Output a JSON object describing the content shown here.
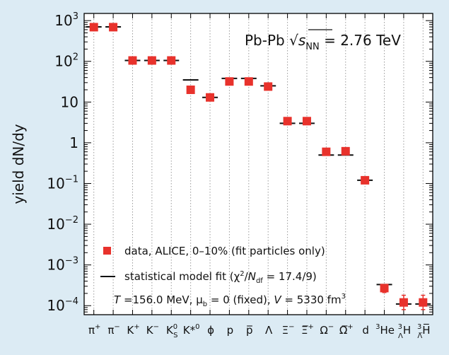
{
  "chart_data": {
    "type": "scatter",
    "title": "",
    "annotation": {
      "prefix": "Pb-Pb ",
      "sqrt": "√",
      "s": "s",
      "sub": "NN",
      "suffix": " = 2.76 TeV"
    },
    "ylabel": "yield dN/dy",
    "yscale": "log",
    "ylim": [
      6e-05,
      1500
    ],
    "y_ticks": [
      {
        "value": 1000,
        "base": "10",
        "exp": "3"
      },
      {
        "value": 100,
        "base": "10",
        "exp": "2"
      },
      {
        "value": 10,
        "base": "10",
        "exp": ""
      },
      {
        "value": 1,
        "base": "1",
        "exp": ""
      },
      {
        "value": 0.1,
        "base": "10",
        "exp": "−1"
      },
      {
        "value": 0.01,
        "base": "10",
        "exp": "−2"
      },
      {
        "value": 0.001,
        "base": "10",
        "exp": "−3"
      },
      {
        "value": 0.0001,
        "base": "10",
        "exp": "−4"
      }
    ],
    "categories": [
      {
        "label": "π",
        "sup": "+",
        "sub": ""
      },
      {
        "label": "π",
        "sup": "−",
        "sub": ""
      },
      {
        "label": "K",
        "sup": "+",
        "sub": ""
      },
      {
        "label": "K",
        "sup": "−",
        "sub": ""
      },
      {
        "label": "K",
        "sup": "0",
        "sub": "S"
      },
      {
        "label": "K*",
        "sup": "0",
        "sub": ""
      },
      {
        "label": "ϕ",
        "sup": "",
        "sub": ""
      },
      {
        "label": "p",
        "sup": "",
        "sub": ""
      },
      {
        "label": "p̅",
        "sup": "",
        "sub": ""
      },
      {
        "label": "Λ",
        "sup": "",
        "sub": ""
      },
      {
        "label": "Ξ",
        "sup": "−",
        "sub": ""
      },
      {
        "label": "Ξ̅",
        "sup": "+",
        "sub": ""
      },
      {
        "label": "Ω",
        "sup": "−",
        "sub": ""
      },
      {
        "label": "Ω̅",
        "sup": "+",
        "sub": ""
      },
      {
        "label": "d",
        "sup": "",
        "sub": ""
      },
      {
        "label": "He",
        "pre_sup": "3",
        "sup": "",
        "sub": ""
      },
      {
        "label": "H",
        "pre_sup": "3",
        "pre_sub": "Λ",
        "sup": "",
        "sub": ""
      },
      {
        "label": "H̅",
        "pre_sup": "3",
        "pre_sub": "Λ̅",
        "sup": "",
        "sub": ""
      }
    ],
    "series": [
      {
        "name": "data, ALICE, 0–10% (fit particles only)",
        "color": "#e8322c",
        "marker": "square",
        "values": [
          690,
          690,
          105,
          105,
          105,
          20,
          13,
          32,
          32,
          24,
          3.4,
          3.4,
          0.6,
          0.62,
          0.12,
          0.00027,
          0.00012,
          0.00012
        ],
        "error_low": [
          null,
          null,
          null,
          null,
          null,
          null,
          null,
          null,
          null,
          null,
          null,
          null,
          null,
          null,
          null,
          0.00021,
          8e-05,
          8e-05
        ],
        "error_high": [
          null,
          null,
          null,
          null,
          null,
          null,
          null,
          null,
          null,
          null,
          null,
          null,
          null,
          null,
          null,
          0.00033,
          0.00018,
          0.00018
        ]
      },
      {
        "name": "statistical model fit",
        "color": "#111111",
        "marker": "hline",
        "values": [
          700,
          700,
          105,
          105,
          105,
          35,
          13,
          38,
          38,
          25,
          3.0,
          3.0,
          0.5,
          0.5,
          0.12,
          0.00033,
          0.00011,
          0.00011
        ]
      }
    ],
    "legend": {
      "placement": "bottom-left",
      "data_label": "data, ALICE, 0–10% (fit particles only)",
      "fit_label_pre": "statistical model fit (χ",
      "fit_sup": "2",
      "fit_label_mid": "/",
      "fit_ndf_N": "N",
      "fit_ndf_sub": "df",
      "fit_label_post": " = 17.4/9)",
      "params": {
        "T_sym": "T",
        "T_val": " =156.0 MeV, ",
        "mu_sym": "μ",
        "mu_sub": "b",
        "mu_val": " = 0 (fixed), ",
        "V_sym": "V",
        "V_val": " = 5330 fm",
        "V_sup": "3"
      }
    },
    "grid": {
      "vertical": true,
      "style": "dotted"
    },
    "colors": {
      "background": "#dcebf4",
      "plot_area": "#ffffff",
      "marker": "#e8322c",
      "fit": "#111111"
    }
  }
}
